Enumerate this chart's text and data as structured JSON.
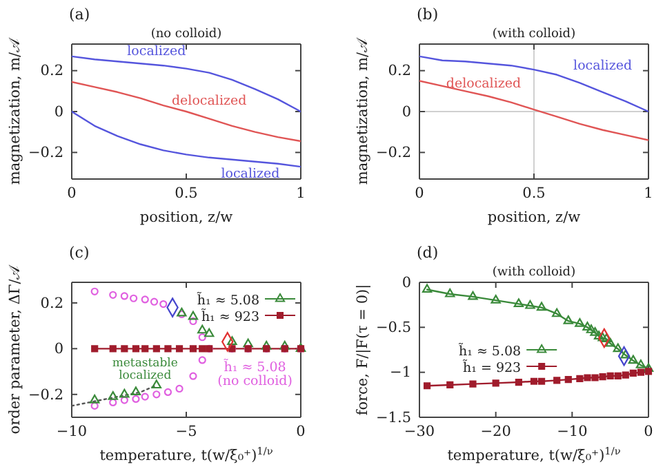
{
  "chart_data": [
    {
      "type": "line",
      "title": "(a)",
      "subtitle": "(no colloid)",
      "xlabel": "position, z/w",
      "ylabel": "magnetization, m/𝒜",
      "xlim": [
        0,
        1
      ],
      "ylim": [
        -0.33,
        0.33
      ],
      "xticks": [
        0,
        0.5,
        1
      ],
      "yticks": [
        -0.2,
        0,
        0.2
      ],
      "legend": false,
      "x": [
        0,
        0.1,
        0.2,
        0.3,
        0.4,
        0.5,
        0.6,
        0.7,
        0.8,
        0.9,
        1
      ],
      "series": [
        {
          "name": "localized",
          "color": "#5555dd",
          "values": [
            0.27,
            0.255,
            0.245,
            0.235,
            0.225,
            0.21,
            0.19,
            0.155,
            0.11,
            0.06,
            0
          ]
        },
        {
          "name": "delocalized",
          "color": "#e05555",
          "values": [
            0.145,
            0.12,
            0.095,
            0.065,
            0.03,
            0,
            -0.035,
            -0.07,
            -0.1,
            -0.125,
            -0.145
          ]
        },
        {
          "name": "localized",
          "color": "#5555dd",
          "values": [
            0,
            -0.07,
            -0.12,
            -0.16,
            -0.19,
            -0.21,
            -0.225,
            -0.235,
            -0.245,
            -0.255,
            -0.27
          ]
        }
      ]
    },
    {
      "type": "line",
      "title": "(b)",
      "subtitle": "(with colloid)",
      "xlabel": "position, z/w",
      "ylabel": "magnetization, m/𝒜",
      "xlim": [
        0,
        1
      ],
      "ylim": [
        -0.33,
        0.33
      ],
      "xticks": [
        0,
        0.5,
        1
      ],
      "yticks": [
        -0.2,
        0,
        0.2
      ],
      "legend": false,
      "x": [
        0,
        0.1,
        0.2,
        0.3,
        0.4,
        0.5,
        0.6,
        0.7,
        0.8,
        0.9,
        1
      ],
      "ref_lines": [
        {
          "axis": "x",
          "value": 0.5,
          "color": "#d0d0d0"
        },
        {
          "axis": "y",
          "value": 0,
          "color": "#d0d0d0"
        }
      ],
      "series": [
        {
          "name": "localized",
          "color": "#5555dd",
          "values": [
            0.27,
            0.25,
            0.245,
            0.235,
            0.225,
            0.205,
            0.18,
            0.14,
            0.095,
            0.05,
            0
          ]
        },
        {
          "name": "delocalized",
          "color": "#e05555",
          "values": [
            0.15,
            0.125,
            0.1,
            0.075,
            0.045,
            0.01,
            -0.025,
            -0.06,
            -0.09,
            -0.115,
            -0.14
          ]
        }
      ]
    },
    {
      "type": "scatter",
      "title": "(c)",
      "xlabel": "temperature, t(w/ξ₀⁺)$^{1/ν}$",
      "ylabel": "order parameter, ΔΓ/𝒜",
      "xlim": [
        -10,
        0
      ],
      "ylim": [
        -0.3,
        0.29
      ],
      "xticks": [
        -10,
        -5,
        0
      ],
      "yticks": [
        -0.2,
        0,
        0.2
      ],
      "legend": "top right",
      "annotations": [
        "metastable localized"
      ],
      "series": [
        {
          "type": "line",
          "line_style": "dotted",
          "color": "#555555",
          "marker": "none",
          "x": [
            -10,
            -9,
            -8,
            -7,
            -6.3
          ],
          "values": [
            -0.25,
            -0.23,
            -0.21,
            -0.19,
            -0.16
          ]
        },
        {
          "name": "h̃₁ ≈ 5.08 (no colloid)",
          "color": "#e060e0",
          "marker": "circle",
          "x": [
            -9,
            -8.2,
            -7.7,
            -7.3,
            -6.8,
            -6.4,
            -6,
            -5.2,
            -4.7,
            -4.3,
            -4.3,
            -4,
            -3,
            -2.3,
            -1.5,
            -0.7,
            0,
            -9,
            -8.2,
            -7.7,
            -7.2,
            -6.8,
            -6.3,
            -5.8,
            -5.3,
            -4.7
          ],
          "values": [
            0.25,
            0.235,
            0.23,
            0.22,
            0.215,
            0.205,
            0.195,
            0.15,
            0.12,
            0.05,
            -0.05,
            0,
            0,
            0,
            0,
            0,
            0,
            -0.25,
            -0.235,
            -0.225,
            -0.22,
            -0.21,
            -0.2,
            -0.19,
            -0.175,
            -0.12
          ]
        },
        {
          "name": "h̃₁ ≈ 5.08",
          "color": "#3a8a3a",
          "marker": "triangle",
          "x": [
            -5.2,
            -4.7,
            -4.3,
            -4,
            -3,
            -2.3,
            -1.5,
            -0.7,
            0,
            -9,
            -8.2,
            -7.7,
            -7.2,
            -6.3
          ],
          "values": [
            0.155,
            0.14,
            0.08,
            0.065,
            0.03,
            0.02,
            0.01,
            0.01,
            0,
            -0.225,
            -0.21,
            -0.2,
            -0.19,
            -0.16
          ]
        },
        {
          "type": "line",
          "name": "h̃₁ ≈ 923",
          "color": "#a01c2c",
          "marker": "square",
          "x": [
            -9,
            -8.2,
            -7.7,
            -7.2,
            -6.8,
            -6.3,
            -5.8,
            -5.3,
            -4.7,
            -4.3,
            -4,
            -3,
            -2.3,
            -1.5,
            -0.7,
            0
          ],
          "values": [
            0,
            0,
            0,
            0,
            0,
            0,
            0,
            0,
            0,
            0,
            0,
            0,
            0,
            0,
            0,
            0
          ]
        },
        {
          "color": "#4444cc",
          "marker": "diamond",
          "x": [
            -5.6
          ],
          "values": [
            0.18
          ]
        },
        {
          "color": "#e03030",
          "marker": "diamond",
          "x": [
            -3.2
          ],
          "values": [
            0.03
          ]
        }
      ]
    },
    {
      "type": "line",
      "title": "(d)",
      "subtitle": "(with colloid)",
      "xlabel": "temperature, t(w/ξ₀⁺)$^{1/ν}$",
      "ylabel": "force, F/|F(τ = 0)|",
      "xlim": [
        -30,
        0
      ],
      "ylim": [
        -1.5,
        0
      ],
      "xticks": [
        -30,
        -20,
        -10,
        0
      ],
      "yticks": [
        -1.5,
        -1,
        -0.5,
        0
      ],
      "legend": "left",
      "series": [
        {
          "name": "h̃₁ ≈ 5.08",
          "color": "#3a8a3a",
          "marker": "triangle",
          "x": [
            -29,
            -26,
            -23,
            -20,
            -17,
            -15.5,
            -14,
            -12,
            -10.5,
            -9,
            -8,
            -7.5,
            -7,
            -6.5,
            -6,
            -5.5,
            -5,
            -4,
            -3,
            -2,
            -1,
            0
          ],
          "values": [
            -0.08,
            -0.13,
            -0.16,
            -0.2,
            -0.24,
            -0.26,
            -0.28,
            -0.35,
            -0.43,
            -0.46,
            -0.5,
            -0.53,
            -0.56,
            -0.6,
            -0.62,
            -0.63,
            -0.68,
            -0.74,
            -0.81,
            -0.87,
            -0.92,
            -0.96
          ]
        },
        {
          "name": "h̃₁ = 923",
          "color": "#a01c2c",
          "marker": "square",
          "x": [
            -29,
            -26,
            -23,
            -20,
            -17,
            -15,
            -14,
            -12,
            -10.5,
            -9,
            -8,
            -7,
            -6,
            -5,
            -4,
            -3,
            -2,
            -1,
            0
          ],
          "values": [
            -1.15,
            -1.14,
            -1.13,
            -1.12,
            -1.11,
            -1.1,
            -1.1,
            -1.09,
            -1.08,
            -1.07,
            -1.06,
            -1.06,
            -1.05,
            -1.04,
            -1.04,
            -1.03,
            -1.01,
            -1,
            -0.99
          ]
        },
        {
          "type": "scatter",
          "color": "#e03030",
          "marker": "diamond",
          "x": [
            -5.8
          ],
          "values": [
            -0.62
          ]
        },
        {
          "type": "scatter",
          "color": "#4444cc",
          "marker": "diamond",
          "x": [
            -3.2
          ],
          "values": [
            -0.82
          ]
        }
      ]
    }
  ]
}
